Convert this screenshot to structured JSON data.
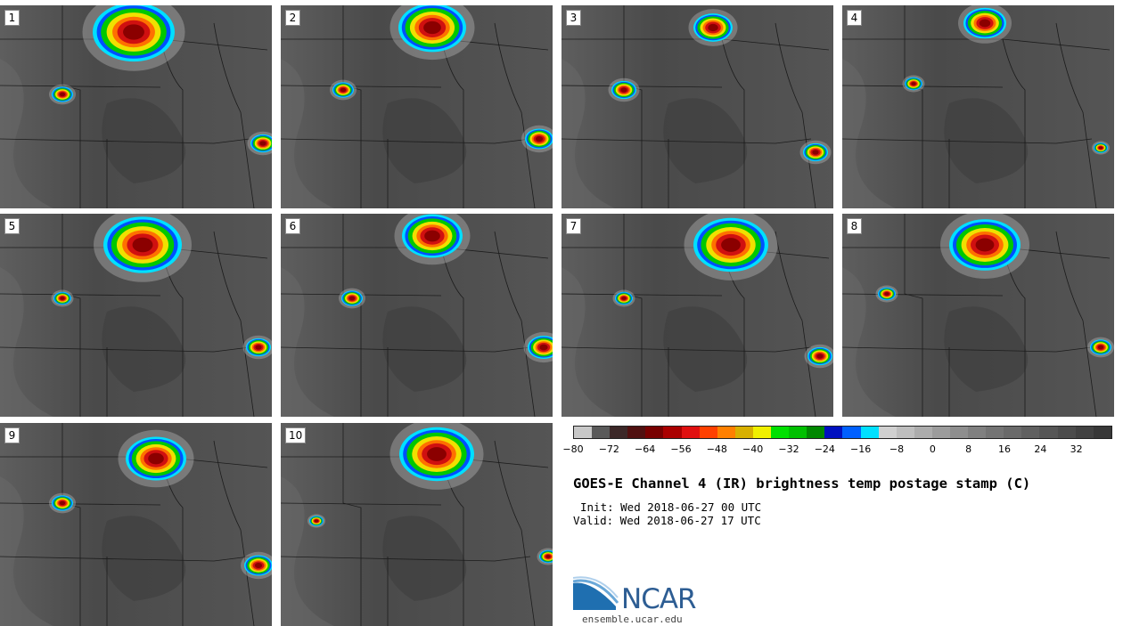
{
  "title": "GOES-E Channel 4 (IR) brightness temp postage stamp (C)",
  "init_label": "Init: Wed 2018-06-27 00 UTC",
  "valid_label": "Valid: Wed 2018-06-27 17 UTC",
  "site": "ensemble.ucar.edu",
  "logo_text": "NCAR",
  "panels": [
    "1",
    "2",
    "3",
    "4",
    "5",
    "6",
    "7",
    "8",
    "9",
    "10"
  ],
  "colorbar": {
    "min": -80,
    "max": 40,
    "step": 4,
    "ticks": [
      "−80",
      "−72",
      "−64",
      "−56",
      "−48",
      "−40",
      "−32",
      "−24",
      "−16",
      "−8",
      "0",
      "8",
      "16",
      "24",
      "32"
    ],
    "tick_values": [
      -80,
      -72,
      -64,
      -56,
      -48,
      -40,
      -32,
      -24,
      -16,
      -8,
      0,
      8,
      16,
      24,
      32
    ],
    "colors": [
      "#c8c8c8",
      "#5a5a5a",
      "#3c2828",
      "#501010",
      "#780000",
      "#aa0000",
      "#e01010",
      "#ff4000",
      "#ff8000",
      "#d8b000",
      "#f0f000",
      "#00e000",
      "#00c000",
      "#008800",
      "#0010c0",
      "#0060ff",
      "#00e0ff",
      "#d0d0d0",
      "#bebebe",
      "#acacac",
      "#9c9c9c",
      "#8e8e8e",
      "#808080",
      "#747474",
      "#6a6a6a",
      "#606060",
      "#565656",
      "#4c4c4c",
      "#424242",
      "#383838"
    ]
  },
  "storm_colors": {
    "core": "#8b0000",
    "red": "#d01010",
    "orange": "#ff7000",
    "yellow": "#f0e000",
    "green": "#00c800",
    "blue": "#0050ff",
    "cyan": "#00e0ff",
    "cloud": "#c8c8c8"
  }
}
